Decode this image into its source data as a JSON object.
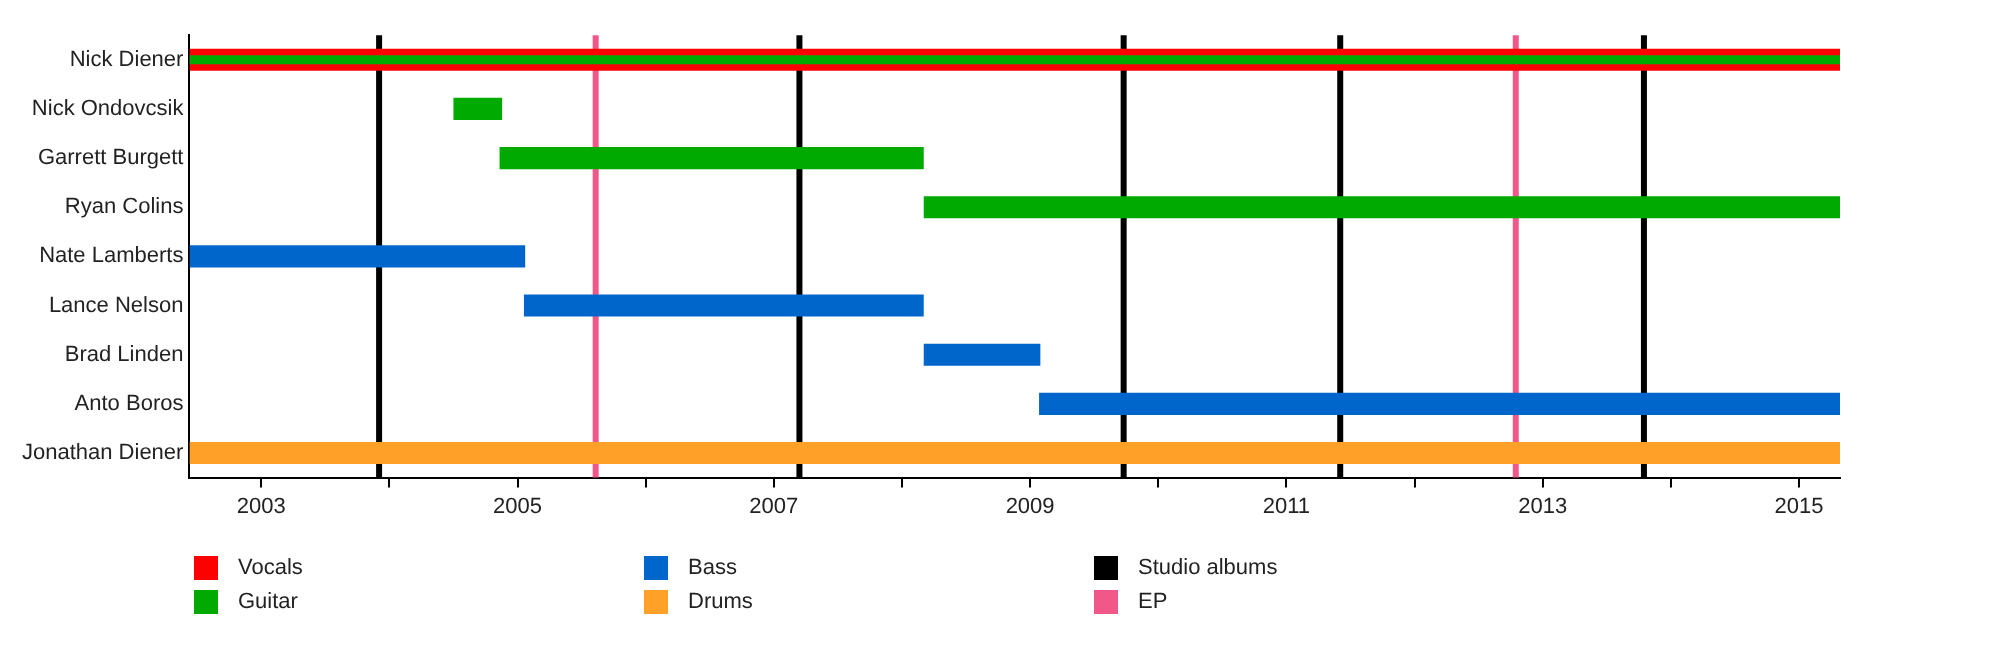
{
  "chart_data": {
    "type": "bar",
    "orientation": "horizontal",
    "categories": [
      "Nick Diener",
      "Nick Ondovcsik",
      "Garrett Burgett",
      "Ryan Colins",
      "Nate Lamberts",
      "Lance Nelson",
      "Brad Linden",
      "Anto Boros",
      "Jonathan Diener"
    ],
    "series": [
      {
        "name": "Vocals",
        "color": "#ff0000",
        "base": [
          2002.44,
          null,
          null,
          null,
          null,
          null,
          null,
          null,
          null
        ],
        "values": [
          12.88,
          null,
          null,
          null,
          null,
          null,
          null,
          null,
          null
        ]
      },
      {
        "name": "Guitar",
        "color": "#00aa00",
        "base": [
          2002.44,
          2004.5,
          2004.86,
          2008.17,
          null,
          null,
          null,
          null,
          null
        ],
        "values": [
          12.88,
          0.38,
          3.31,
          7.15,
          null,
          null,
          null,
          null,
          null
        ]
      },
      {
        "name": "Bass",
        "color": "#0066cc",
        "base": [
          null,
          null,
          null,
          null,
          2002.44,
          2005.05,
          2008.17,
          2009.07,
          null
        ],
        "values": [
          null,
          null,
          null,
          null,
          2.62,
          3.12,
          0.91,
          6.25,
          null
        ]
      },
      {
        "name": "Drums",
        "color": "#ffa028",
        "base": [
          null,
          null,
          null,
          null,
          null,
          null,
          null,
          null,
          2002.44
        ],
        "values": [
          null,
          null,
          null,
          null,
          null,
          null,
          null,
          null,
          12.88
        ]
      }
    ],
    "xlim": [
      2002.44,
      2015.32
    ],
    "xticks": [
      2003,
      {
        "value": 2004,
        "label": null
      },
      2005,
      {
        "value": 2006,
        "label": null
      },
      2007,
      {
        "value": 2008,
        "label": null
      },
      2009,
      {
        "value": 2010,
        "label": null
      },
      2011,
      {
        "value": 2012,
        "label": null
      },
      2013,
      {
        "value": 2014,
        "label": null
      },
      2015
    ],
    "ref_lines": [
      {
        "axis": "x",
        "value": 2003.92,
        "label": "Studio albums",
        "color": "#000000"
      },
      {
        "axis": "x",
        "value": 2007.2,
        "color": "#000000"
      },
      {
        "axis": "x",
        "value": 2009.73,
        "color": "#000000"
      },
      {
        "axis": "x",
        "value": 2011.42,
        "color": "#000000"
      },
      {
        "axis": "x",
        "value": 2013.79,
        "color": "#000000"
      },
      {
        "axis": "x",
        "value": 2005.61,
        "label": "EP",
        "color": "#f0588a"
      },
      {
        "axis": "x",
        "value": 2012.79,
        "color": "#f0588a"
      }
    ],
    "grid": false,
    "legend": "bottom"
  }
}
